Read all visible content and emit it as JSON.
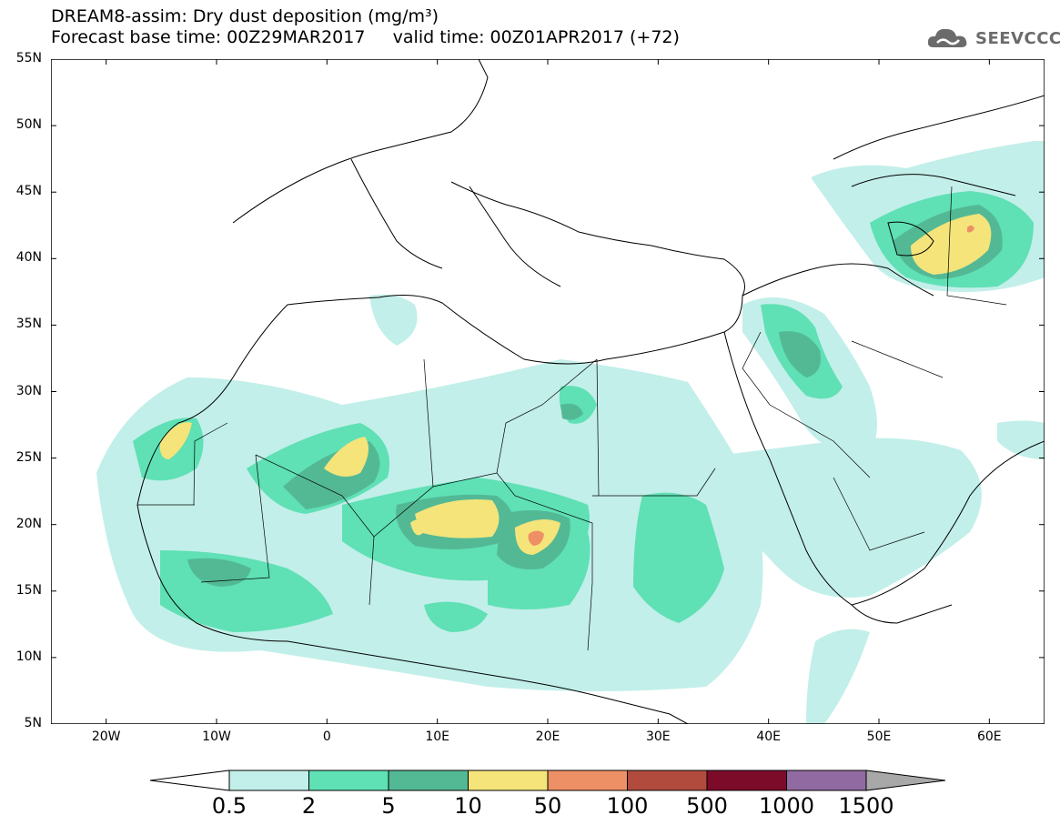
{
  "header": {
    "title_line1": "DREAM8-assim: Dry dust deposition (mg/m³)",
    "title_line2": "Forecast base time: 00Z29MAR2017     valid time: 00Z01APR2017 (+72)",
    "logo_text": "SEEVCCC"
  },
  "map": {
    "lat_labels": [
      "55N",
      "50N",
      "45N",
      "40N",
      "35N",
      "30N",
      "25N",
      "20N",
      "15N",
      "10N",
      "5N"
    ],
    "lon_labels": [
      "20W",
      "10W",
      "0",
      "10E",
      "20E",
      "30E",
      "40E",
      "50E",
      "60E"
    ],
    "extent": {
      "lon_min": -25,
      "lon_max": 65,
      "lat_min": 5,
      "lat_max": 55
    }
  },
  "legend": {
    "labels": [
      "0.5",
      "2",
      "5",
      "10",
      "50",
      "100",
      "500",
      "1000",
      "1500"
    ],
    "colors": [
      "#c2efe9",
      "#5fe0b5",
      "#53b995",
      "#f4e47a",
      "#ee9065",
      "#b04b3e",
      "#7c0b2a",
      "#906aa0"
    ],
    "under_color": "#ffffff",
    "over_color": "#a8a8a8"
  }
}
